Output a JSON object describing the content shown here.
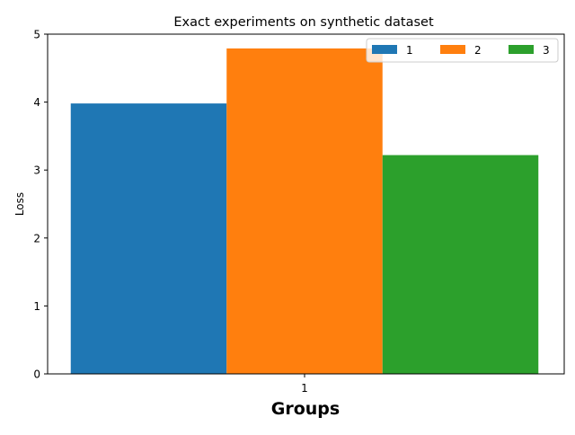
{
  "chart_data": {
    "type": "bar",
    "title": "Exact experiments on synthetic dataset",
    "xlabel": "Groups",
    "ylabel": "Loss",
    "categories": [
      "1"
    ],
    "series": [
      {
        "name": "1",
        "values": [
          3.98
        ],
        "color": "#1f77b4"
      },
      {
        "name": "2",
        "values": [
          4.79
        ],
        "color": "#ff7f0e"
      },
      {
        "name": "3",
        "values": [
          3.22
        ],
        "color": "#2ca02c"
      }
    ],
    "ylim": [
      0,
      5
    ],
    "yticks": [
      "0",
      "1",
      "2",
      "3",
      "4",
      "5"
    ],
    "grid": false,
    "legend_position": "top-right"
  }
}
